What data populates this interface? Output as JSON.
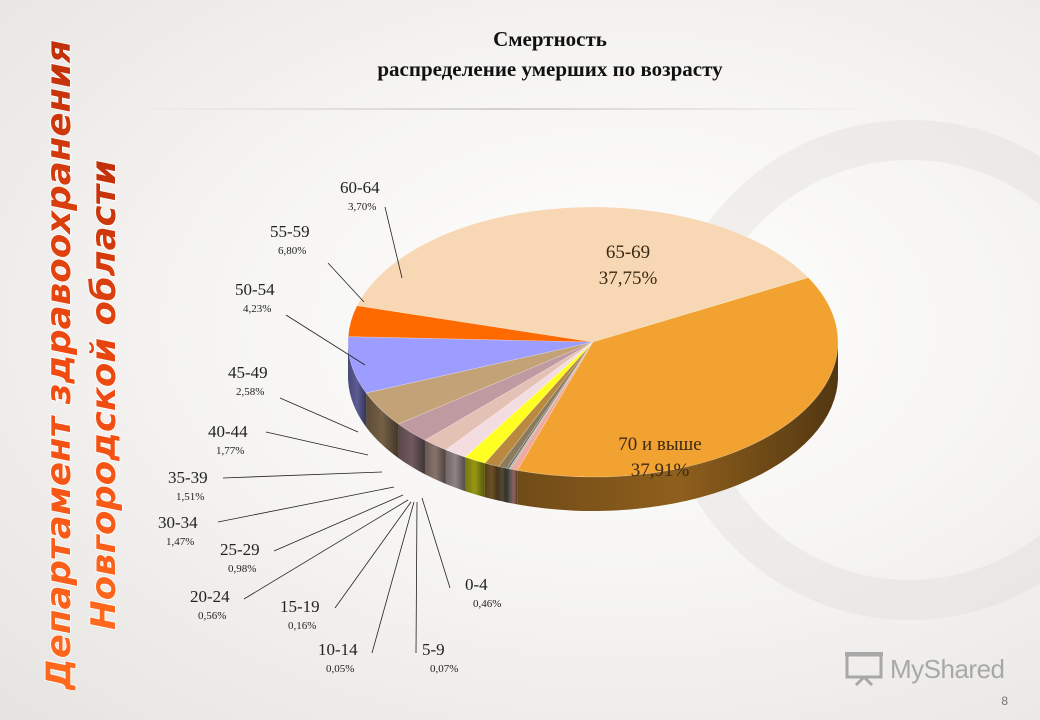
{
  "slide": {
    "title_line1": "Смертность",
    "title_line2": "распределение умерших по возрасту",
    "side_line1": "Департамент здравоохранения",
    "side_line2": "Новгородской области",
    "page_number": "8",
    "watermark": "MyShared"
  },
  "colors": {
    "accent_orange": "#f2a230",
    "title_text": "#111111"
  },
  "chart_data": {
    "type": "pie",
    "title": "Смертность распределение умерших по возрасту",
    "legend": "none",
    "slices": [
      {
        "label": "0-4",
        "value_text": "0,46%",
        "value": 0.46,
        "color": "#f0a9a0"
      },
      {
        "label": "5-9",
        "value_text": "0,07%",
        "value": 0.07,
        "color": "#9a9a7a"
      },
      {
        "label": "10-14",
        "value_text": "0,05%",
        "value": 0.05,
        "color": "#7f9a6a"
      },
      {
        "label": "15-19",
        "value_text": "0,16%",
        "value": 0.16,
        "color": "#6e6e6e"
      },
      {
        "label": "20-24",
        "value_text": "0,56%",
        "value": 0.56,
        "color": "#8c7a5c"
      },
      {
        "label": "25-29",
        "value_text": "0,98%",
        "value": 0.98,
        "color": "#b8893e"
      },
      {
        "label": "30-34",
        "value_text": "1,47%",
        "value": 1.47,
        "color": "#ffff22"
      },
      {
        "label": "35-39",
        "value_text": "1,51%",
        "value": 1.51,
        "color": "#f3dde0"
      },
      {
        "label": "40-44",
        "value_text": "1,77%",
        "value": 1.77,
        "color": "#e3c1b5"
      },
      {
        "label": "45-49",
        "value_text": "2,58%",
        "value": 2.58,
        "color": "#bf9aa0"
      },
      {
        "label": "50-54",
        "value_text": "4,23%",
        "value": 4.23,
        "color": "#c4a278"
      },
      {
        "label": "55-59",
        "value_text": "6,80%",
        "value": 6.8,
        "color": "#9d9dff"
      },
      {
        "label": "60-64",
        "value_text": "3,70%",
        "value": 3.7,
        "color": "#ff6a00"
      },
      {
        "label": "65-69",
        "value_text": "37,75%",
        "value": 37.75,
        "color": "#f7d7b4"
      },
      {
        "label": "70 и выше",
        "value_text": "37,91%",
        "value": 37.91,
        "color": "#f2a230"
      }
    ]
  }
}
